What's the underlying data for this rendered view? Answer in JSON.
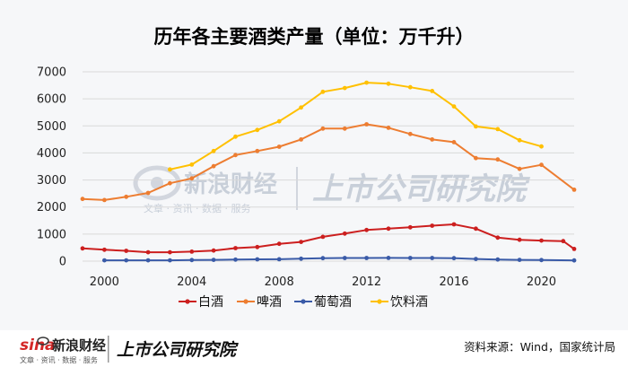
{
  "title": "历年各主要酒类产量（单位：万千升）",
  "source": "资料来源：Wind，国家统计局",
  "watermark": {
    "sina_logo": "sina",
    "sina_name": "新浪财经",
    "sina_sub": "文章 · 资讯 · 数据 · 服务",
    "institute": "上市公司研究院"
  },
  "colors": {
    "baijiu": "#cc1f1f",
    "beer": "#ed7d31",
    "wine": "#3a5ba8",
    "beverage": "#ffc000",
    "grid": "#d9d9d9",
    "background": "#f6f7f9"
  },
  "chart_data": {
    "type": "line",
    "title": "历年各主要酒类产量（单位：万千升）",
    "xlabel": "",
    "ylabel": "",
    "x_ticks": [
      2000,
      2004,
      2008,
      2012,
      2016,
      2020
    ],
    "y_ticks": [
      0,
      1000,
      2000,
      3000,
      4000,
      5000,
      6000,
      7000
    ],
    "xlim": [
      1999,
      2021.5
    ],
    "ylim": [
      0,
      7000
    ],
    "grid": "horizontal",
    "legend_position": "bottom",
    "series": [
      {
        "name": "白酒",
        "color": "#cc1f1f",
        "points": [
          [
            1999,
            470
          ],
          [
            2000,
            420
          ],
          [
            2001,
            380
          ],
          [
            2002,
            330
          ],
          [
            2003,
            330
          ],
          [
            2004,
            350
          ],
          [
            2005,
            390
          ],
          [
            2006,
            480
          ],
          [
            2007,
            520
          ],
          [
            2008,
            640
          ],
          [
            2009,
            710
          ],
          [
            2010,
            900
          ],
          [
            2011,
            1020
          ],
          [
            2012,
            1150
          ],
          [
            2013,
            1200
          ],
          [
            2014,
            1250
          ],
          [
            2015,
            1310
          ],
          [
            2016,
            1360
          ],
          [
            2017,
            1200
          ],
          [
            2018,
            870
          ],
          [
            2019,
            790
          ],
          [
            2020,
            760
          ],
          [
            2021,
            740
          ],
          [
            2021.5,
            450
          ]
        ]
      },
      {
        "name": "啤酒",
        "color": "#ed7d31",
        "points": [
          [
            1999,
            2300
          ],
          [
            2000,
            2260
          ],
          [
            2001,
            2380
          ],
          [
            2002,
            2520
          ],
          [
            2003,
            2880
          ],
          [
            2004,
            3060
          ],
          [
            2005,
            3510
          ],
          [
            2006,
            3920
          ],
          [
            2007,
            4070
          ],
          [
            2008,
            4230
          ],
          [
            2009,
            4500
          ],
          [
            2010,
            4900
          ],
          [
            2011,
            4900
          ],
          [
            2012,
            5060
          ],
          [
            2013,
            4930
          ],
          [
            2014,
            4700
          ],
          [
            2015,
            4500
          ],
          [
            2016,
            4400
          ],
          [
            2017,
            3810
          ],
          [
            2018,
            3760
          ],
          [
            2019,
            3410
          ],
          [
            2020,
            3560
          ],
          [
            2021.5,
            2640
          ]
        ]
      },
      {
        "name": "葡萄酒",
        "color": "#3a5ba8",
        "points": [
          [
            2000,
            30
          ],
          [
            2001,
            30
          ],
          [
            2002,
            30
          ],
          [
            2003,
            30
          ],
          [
            2004,
            40
          ],
          [
            2005,
            45
          ],
          [
            2006,
            55
          ],
          [
            2007,
            65
          ],
          [
            2008,
            70
          ],
          [
            2009,
            90
          ],
          [
            2010,
            110
          ],
          [
            2011,
            115
          ],
          [
            2012,
            115
          ],
          [
            2013,
            120
          ],
          [
            2014,
            115
          ],
          [
            2015,
            115
          ],
          [
            2016,
            110
          ],
          [
            2017,
            80
          ],
          [
            2018,
            60
          ],
          [
            2019,
            45
          ],
          [
            2020,
            40
          ],
          [
            2021.5,
            25
          ]
        ]
      },
      {
        "name": "饮料酒",
        "color": "#ffc000",
        "points": [
          [
            2003,
            3390
          ],
          [
            2004,
            3570
          ],
          [
            2005,
            4070
          ],
          [
            2006,
            4600
          ],
          [
            2007,
            4850
          ],
          [
            2008,
            5170
          ],
          [
            2009,
            5680
          ],
          [
            2010,
            6260
          ],
          [
            2011,
            6400
          ],
          [
            2012,
            6600
          ],
          [
            2013,
            6560
          ],
          [
            2014,
            6430
          ],
          [
            2015,
            6290
          ],
          [
            2016,
            5720
          ],
          [
            2017,
            4980
          ],
          [
            2018,
            4880
          ],
          [
            2019,
            4470
          ],
          [
            2020,
            4240
          ]
        ]
      }
    ]
  }
}
